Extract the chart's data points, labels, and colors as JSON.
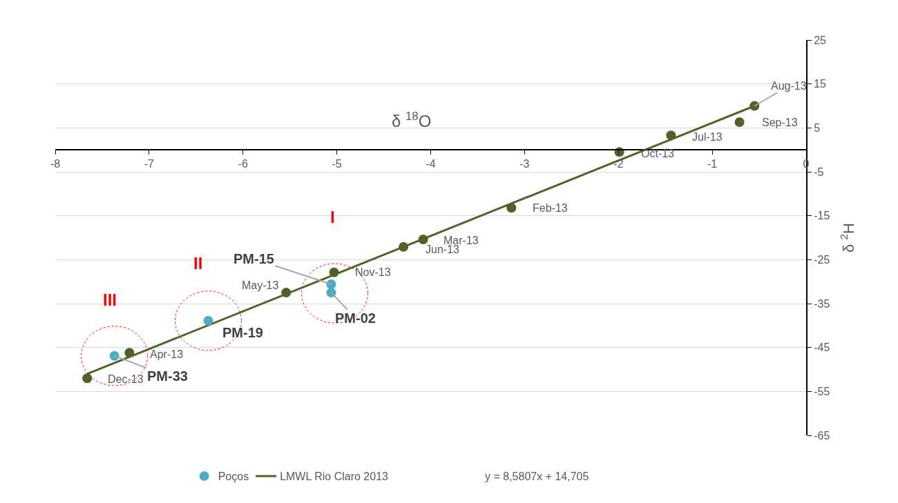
{
  "chart_data": {
    "type": "scatter",
    "xlabel": "δ $^{18}$O",
    "ylabel": "δ $^{2}$H",
    "xlim": [
      -8,
      0
    ],
    "xticks": [
      -8,
      -7,
      -6,
      -5,
      -4,
      -3,
      -2,
      -1,
      0
    ],
    "ylim": [
      -65,
      25
    ],
    "yticks": [
      -65,
      -55,
      -45,
      -35,
      -25,
      -15,
      -5,
      5,
      15,
      25
    ],
    "grid": "y",
    "legend": "bottom",
    "marker": "circle",
    "series": [
      {
        "name": "Poços",
        "color": "#4bacc6",
        "x": [
          -5.06,
          -5.06,
          -6.37,
          -7.37
        ],
        "values": [
          -30.6,
          -32.5,
          -38.9,
          -46.9
        ]
      },
      {
        "color": "#4f6228",
        "x": [
          -0.55,
          -0.71,
          -1.44,
          -1.99,
          -3.14,
          -4.08,
          -4.29,
          -5.03,
          -5.54,
          -7.21,
          -7.66
        ],
        "values": [
          10.0,
          6.3,
          3.3,
          -0.5,
          -13.2,
          -20.4,
          -22.1,
          -27.9,
          -32.5,
          -46.2,
          -52.0
        ]
      },
      {
        "name": "LMWL Rio Claro 2013",
        "type": "line",
        "marker": "none",
        "line_style": "solid",
        "color": "#4f6228",
        "x": [
          -7.66,
          -0.55
        ],
        "values": [
          -51.0,
          10.0
        ]
      }
    ],
    "annotations": [
      {
        "text": "Aug-13",
        "x": -0.55,
        "y": 10.0
      },
      {
        "text": "Sep-13",
        "x": -0.71,
        "y": 6.3
      },
      {
        "text": "Jul-13",
        "x": -1.44,
        "y": 3.3
      },
      {
        "text": "Oct-13",
        "x": -1.99,
        "y": -0.5
      },
      {
        "text": "Feb-13",
        "x": -3.14,
        "y": -13.2
      },
      {
        "text": "Mar-13",
        "x": -4.08,
        "y": -20.4
      },
      {
        "text": "Jun-13",
        "x": -4.29,
        "y": -22.1
      },
      {
        "text": "Nov-13",
        "x": -5.03,
        "y": -27.9
      },
      {
        "text": "May-13",
        "x": -5.54,
        "y": -32.5
      },
      {
        "text": "Apr-13",
        "x": -7.21,
        "y": -46.2
      },
      {
        "text": "Dec-13",
        "x": -7.66,
        "y": -52.0
      },
      {
        "text": "PM-15",
        "x": -5.06,
        "y": -30.6
      },
      {
        "text": "PM-02",
        "x": -5.06,
        "y": -32.5
      },
      {
        "text": "PM-19",
        "x": -6.37,
        "y": -38.9
      },
      {
        "text": "PM-33",
        "x": -7.37,
        "y": -46.9
      },
      "I",
      "II",
      "III",
      "y = 8,5807x + 14,705"
    ]
  }
}
